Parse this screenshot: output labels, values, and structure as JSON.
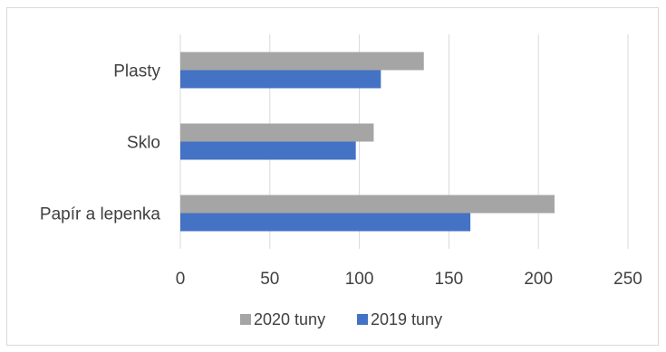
{
  "chart_data": {
    "type": "bar",
    "orientation": "horizontal",
    "categories": [
      "Plasty",
      "Sklo",
      "Papír a lepenka"
    ],
    "series": [
      {
        "name": "2020 tuny",
        "color": "#a5a5a5",
        "values": [
          136,
          108,
          209
        ]
      },
      {
        "name": "2019 tuny",
        "color": "#4472c4",
        "values": [
          112,
          98,
          162
        ]
      }
    ],
    "xlim": [
      0,
      250
    ],
    "x_ticks": [
      "0",
      "50",
      "100",
      "150",
      "200",
      "250"
    ],
    "grid": "vertical",
    "legend": "bottom"
  }
}
